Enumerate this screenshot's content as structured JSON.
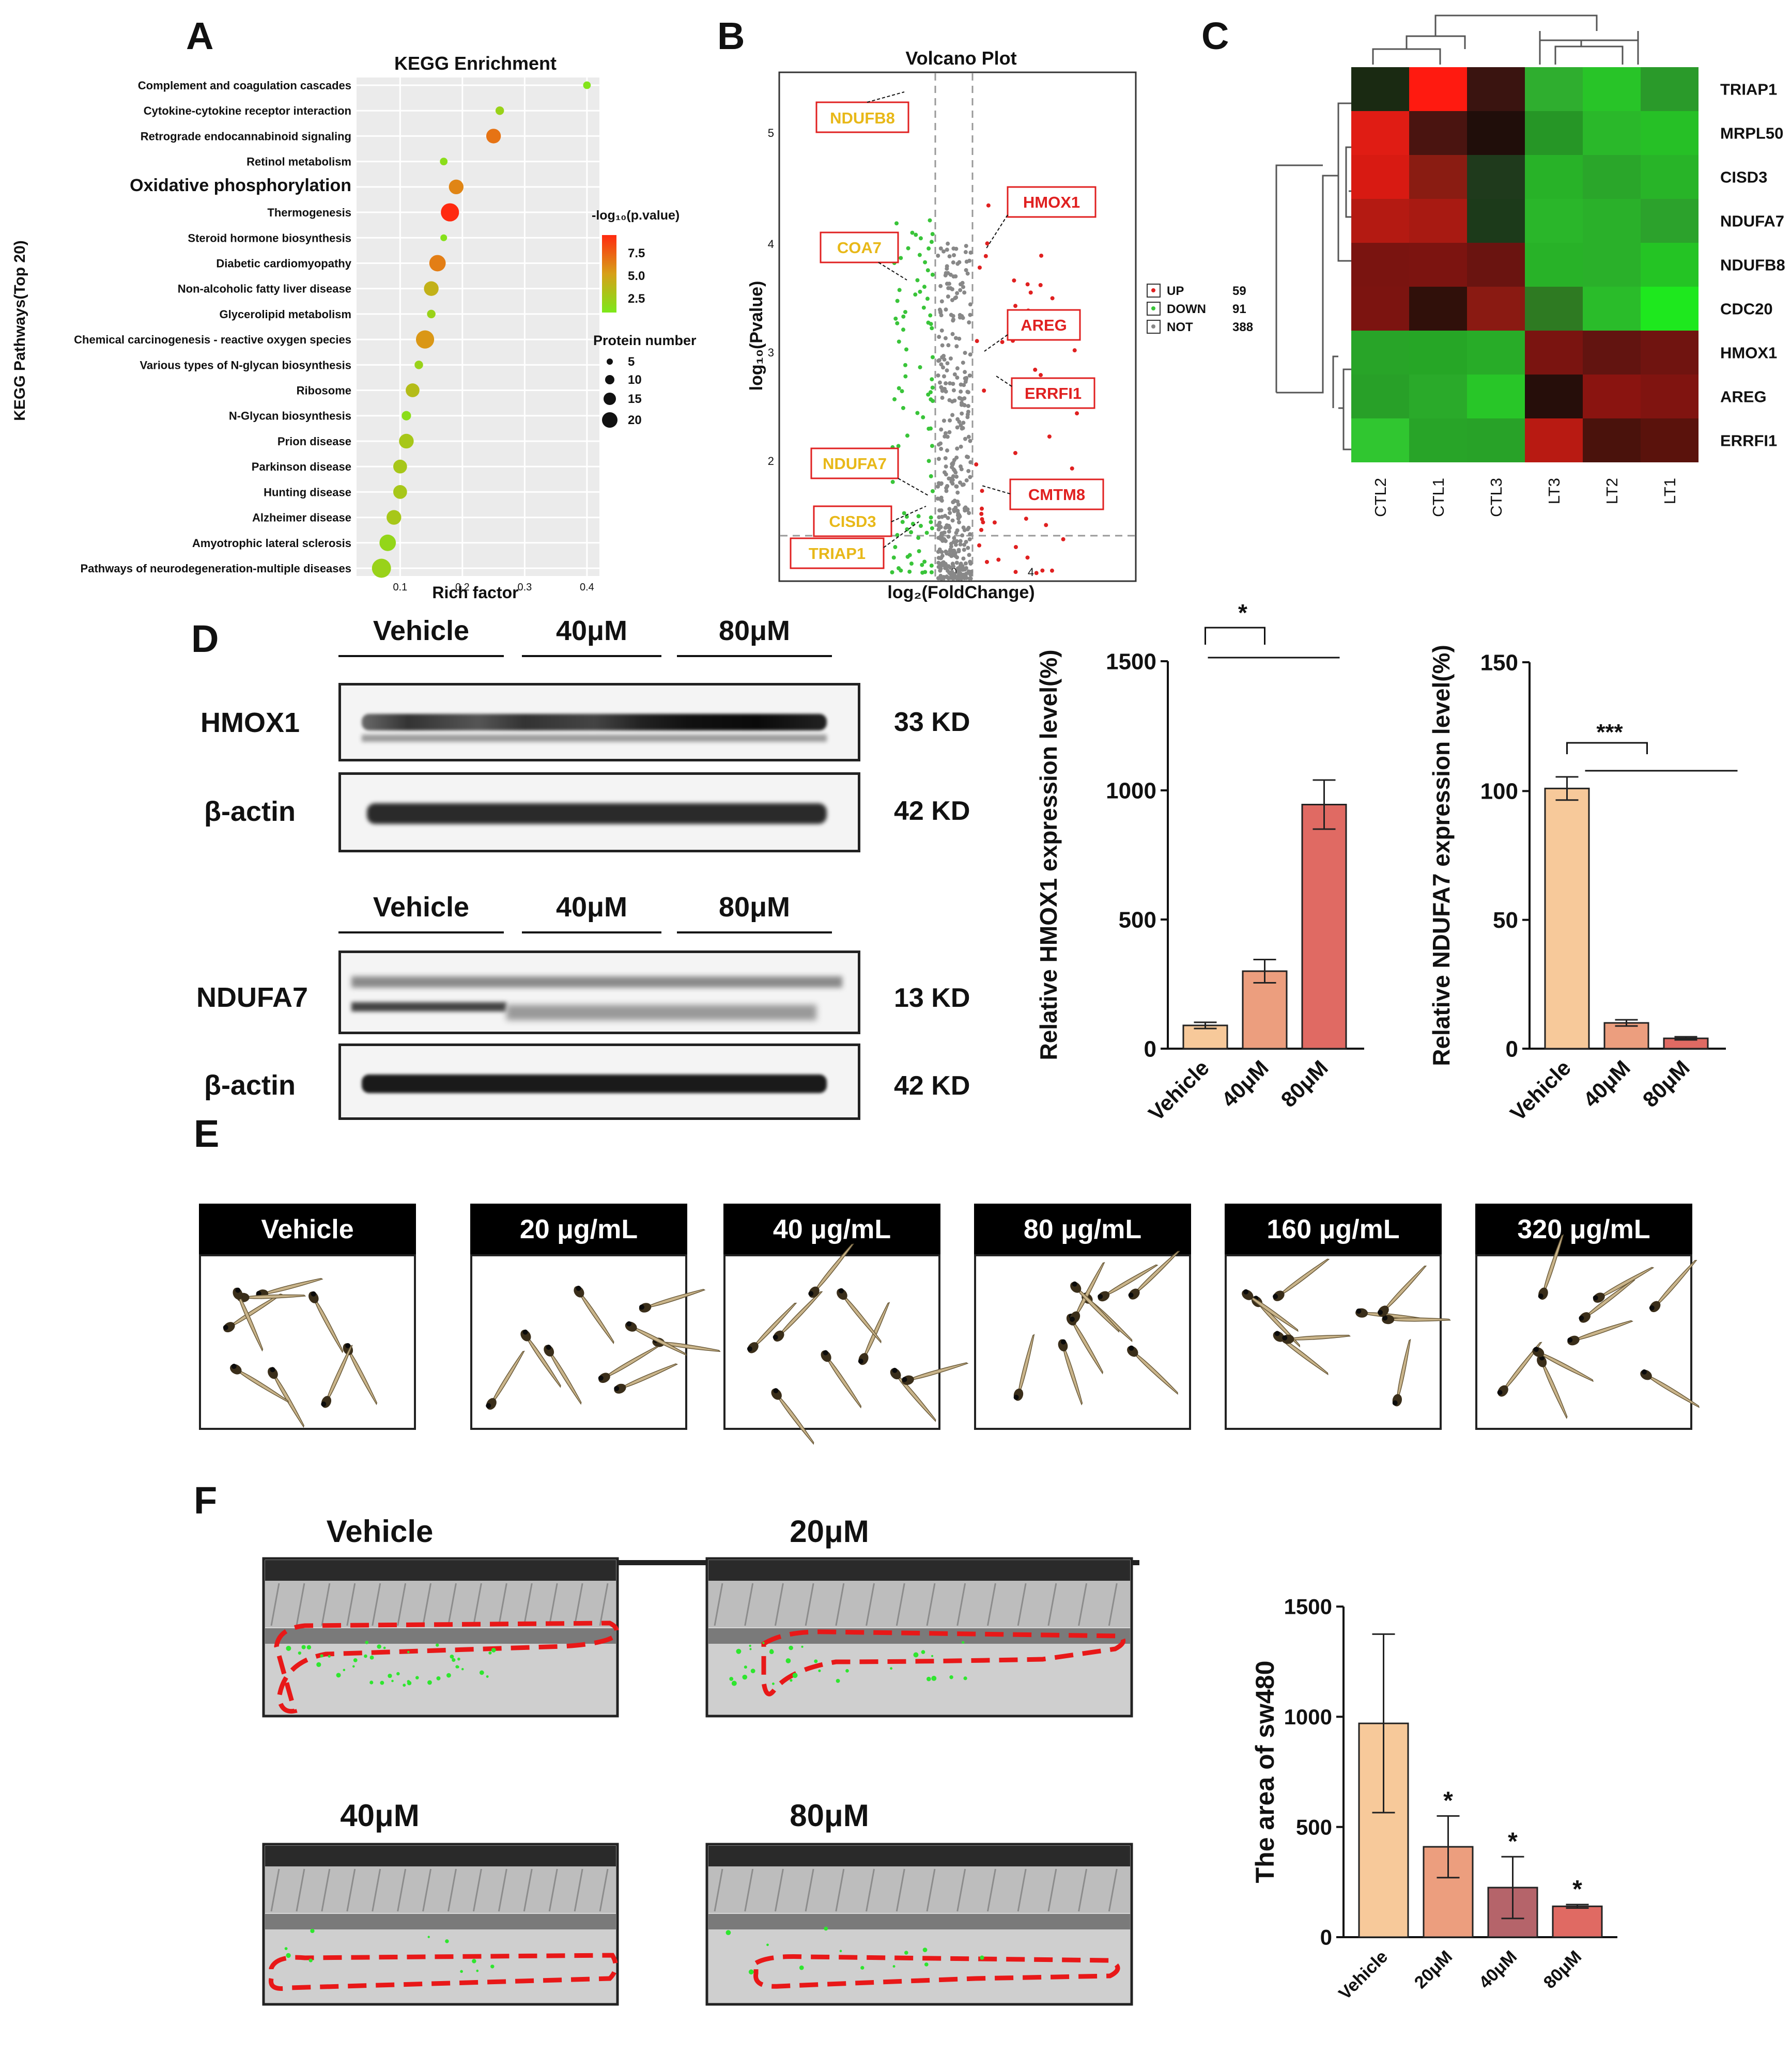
{
  "labels": {
    "A": "A",
    "B": "B",
    "C": "C",
    "D": "D",
    "E": "E",
    "F": "F"
  },
  "panelA": {
    "title": "KEGG Enrichment",
    "ylabel": "KEGG Pathways(Top 20)",
    "xlabel": "Rich factor",
    "xticks": [
      "0.1",
      "0.2",
      "0.3",
      "0.4"
    ],
    "legend_color_title": "-log₁₀(p.value)",
    "legend_color_ticks": [
      "7.5",
      "5.0",
      "2.5"
    ],
    "legend_size_title": "Protein number",
    "legend_size_ticks": [
      "5",
      "10",
      "15",
      "20"
    ]
  },
  "panelB": {
    "title": "Volcano Plot",
    "ylabel": "log₁₀(Pvalue)",
    "xlabel": "log₂(FoldChange)",
    "yticks": [
      "2",
      "3",
      "4",
      "5"
    ],
    "xticks": [
      "0",
      "4"
    ],
    "legend": [
      {
        "label": "UP",
        "count": "59",
        "color": "#e02020"
      },
      {
        "label": "DOWN",
        "count": "91",
        "color": "#39c439"
      },
      {
        "label": "NOT",
        "count": "388",
        "color": "#888888"
      }
    ],
    "callouts_down": [
      "NDUFB8",
      "COA7",
      "NDUFA7",
      "CISD3",
      "TRIAP1"
    ],
    "callouts_up": [
      "HMOX1",
      "AREG",
      "ERRFI1",
      "CMTM8"
    ]
  },
  "panelC": {
    "rows": [
      "TRIAP1",
      "MRPL50",
      "CISD3",
      "NDUFA7",
      "NDUFB8",
      "CDC20",
      "HMOX1",
      "AREG",
      "ERRFI1"
    ],
    "cols": [
      "CTL2",
      "CTL1",
      "CTL3",
      "LT3",
      "LT2",
      "LT1"
    ],
    "cells": [
      [
        "#1a2a12",
        "#ff1a10",
        "#3a1410",
        "#2fae2f",
        "#28c428",
        "#2a9a2a"
      ],
      [
        "#e01c14",
        "#4a1410",
        "#200e0a",
        "#269626",
        "#2ab82a",
        "#26c026"
      ],
      [
        "#d81a12",
        "#8a1c12",
        "#1f3a1c",
        "#28b228",
        "#2aa62a",
        "#28b428"
      ],
      [
        "#b41a12",
        "#a81a12",
        "#1c3a1a",
        "#2ab62a",
        "#2ab02a",
        "#2ca22c"
      ],
      [
        "#7a1410",
        "#7c1410",
        "#6a1410",
        "#28b228",
        "#2ab02a",
        "#24c424"
      ],
      [
        "#7c1410",
        "#30100a",
        "#8a1a12",
        "#2e7a22",
        "#2abc2a",
        "#1ee81e"
      ],
      [
        "#28a428",
        "#26a626",
        "#28ac28",
        "#7a1410",
        "#621410",
        "#701410"
      ],
      [
        "#28a028",
        "#2aaa2a",
        "#28c628",
        "#260e0a",
        "#8a1410",
        "#801410"
      ],
      [
        "#30c630",
        "#28a428",
        "#28a228",
        "#b81a12",
        "#4a120c",
        "#5a120c"
      ]
    ]
  },
  "panelD": {
    "blots": [
      {
        "header": [
          "Vehicle",
          "40μM",
          "80μM"
        ],
        "rows": [
          {
            "name": "HMOX1",
            "kd": "33 KD"
          },
          {
            "name": "β-actin",
            "kd": "42 KD"
          }
        ]
      },
      {
        "header": [
          "Vehicle",
          "40μM",
          "80μM"
        ],
        "rows": [
          {
            "name": "NDUFA7",
            "kd": "13 KD"
          },
          {
            "name": "β-actin",
            "kd": "42 KD"
          }
        ]
      }
    ]
  },
  "panelE": {
    "groups": [
      "Vehicle",
      "20 μg/mL",
      "40 μg/mL",
      "80 μg/mL",
      "160 μg/mL",
      "320 μg/mL"
    ]
  },
  "panelF": {
    "images": [
      "Vehicle",
      "20μM",
      "40μM",
      "80μM"
    ]
  },
  "chart_data": [
    {
      "type": "scatter",
      "id": "kegg",
      "title": "KEGG Enrichment",
      "xlabel": "Rich factor",
      "ylabel": "KEGG Pathways(Top 20)",
      "xlim": [
        0.03,
        0.42
      ],
      "categories": [
        "Complement and coagulation cascades",
        "Cytokine-cytokine receptor interaction",
        "Retrograde endocannabinoid signaling",
        "Retinol metabolism",
        "Oxidative phosphorylation",
        "Thermogenesis",
        "Steroid hormone biosynthesis",
        "Diabetic cardiomyopathy",
        "Non-alcoholic fatty liver disease",
        "Glycerolipid metabolism",
        "Chemical carcinogenesis - reactive oxygen species",
        "Various types of N-glycan biosynthesis",
        "Ribosome",
        "N-Glycan biosynthesis",
        "Prion disease",
        "Parkinson disease",
        "Hunting disease",
        "Alzheimer disease",
        "Amyotrophic lateral sclerosis",
        "Pathways of neurodegeneration-multiple diseases"
      ],
      "x": [
        0.4,
        0.26,
        0.25,
        0.17,
        0.19,
        0.18,
        0.17,
        0.16,
        0.15,
        0.15,
        0.14,
        0.13,
        0.12,
        0.11,
        0.11,
        0.1,
        0.1,
        0.09,
        0.08,
        0.07
      ],
      "neglog10p": [
        2.2,
        3.0,
        6.5,
        2.5,
        6.0,
        8.5,
        2.3,
        6.2,
        4.5,
        3.0,
        5.5,
        3.0,
        4.0,
        2.5,
        3.5,
        3.5,
        3.5,
        3.5,
        2.8,
        3.0
      ],
      "count": [
        4,
        5,
        12,
        4,
        12,
        16,
        3,
        14,
        12,
        5,
        16,
        5,
        11,
        6,
        12,
        11,
        11,
        12,
        14,
        17
      ]
    },
    {
      "type": "bar",
      "id": "hmox1",
      "ylabel": "Relative HMOX1 expression level(%)",
      "categories": [
        "Vehicle",
        "40μM",
        "80μM"
      ],
      "values": [
        90,
        300,
        945
      ],
      "errors": [
        12,
        45,
        95
      ],
      "yticks": [
        "0",
        "500",
        "1000",
        "1500"
      ],
      "ylim": [
        0,
        1500
      ],
      "significance": "*",
      "colors": [
        "#f7c99a",
        "#ec9e7e",
        "#e06a63"
      ]
    },
    {
      "type": "bar",
      "id": "ndufa7",
      "ylabel": "Relative NDUFA7 expression level(%)",
      "categories": [
        "Vehicle",
        "40μM",
        "80μM"
      ],
      "values": [
        101,
        10,
        4
      ],
      "errors": [
        4.5,
        1.2,
        0.6
      ],
      "yticks": [
        "0",
        "50",
        "100",
        "150"
      ],
      "ylim": [
        0,
        150
      ],
      "significance": "***",
      "colors": [
        "#f7c99a",
        "#ec9e7e",
        "#e06a63"
      ]
    },
    {
      "type": "bar",
      "id": "sw480",
      "ylabel": "The area of sw480",
      "categories": [
        "Vehicle",
        "20μM",
        "40μM",
        "80μM"
      ],
      "values": [
        970,
        410,
        225,
        140
      ],
      "errors": [
        405,
        140,
        140,
        8
      ],
      "yticks": [
        "0",
        "500",
        "1000",
        "1500"
      ],
      "ylim": [
        0,
        1500
      ],
      "stars": [
        "",
        "*",
        "*",
        "*"
      ],
      "colors": [
        "#f7c99a",
        "#ec9e7e",
        "#b5646a",
        "#e06a63"
      ]
    }
  ]
}
